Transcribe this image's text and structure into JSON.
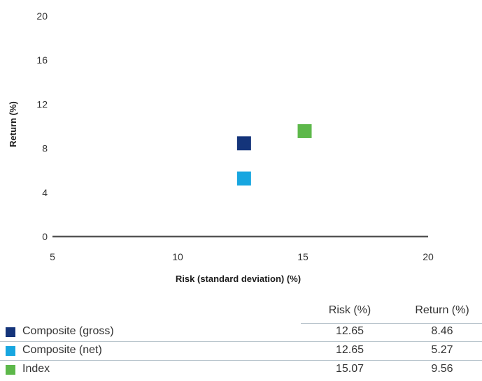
{
  "chart_data": {
    "type": "scatter",
    "xlabel": "Risk (standard deviation) (%)",
    "ylabel": "Return (%)",
    "xlim": [
      5,
      20
    ],
    "ylim": [
      0,
      20
    ],
    "x_ticks": [
      5,
      10,
      15,
      20
    ],
    "y_ticks": [
      0,
      4,
      8,
      12,
      16,
      20
    ],
    "grid": false,
    "series": [
      {
        "name": "Composite (gross)",
        "color": "#14347a",
        "x": 12.65,
        "y": 8.46
      },
      {
        "name": "Composite (net)",
        "color": "#17a6e0",
        "x": 12.65,
        "y": 5.27
      },
      {
        "name": "Index",
        "color": "#5db84a",
        "x": 15.07,
        "y": 9.56
      }
    ]
  },
  "table": {
    "headers": {
      "risk": "Risk (%)",
      "return": "Return (%)"
    },
    "rows": [
      {
        "label": "Composite (gross)",
        "risk": "12.65",
        "return": "8.46",
        "color": "#14347a"
      },
      {
        "label": "Composite (net)",
        "risk": "12.65",
        "return": "5.27",
        "color": "#17a6e0"
      },
      {
        "label": "Index",
        "risk": "15.07",
        "return": "9.56",
        "color": "#5db84a"
      }
    ]
  }
}
